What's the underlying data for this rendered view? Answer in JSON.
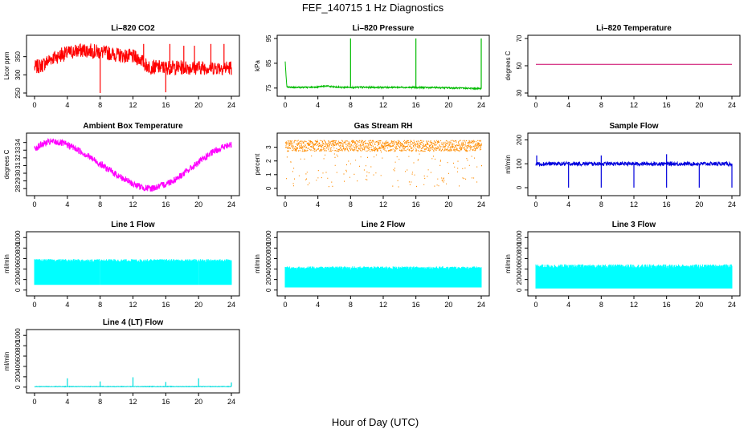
{
  "figure": {
    "title": "FEF_140715  1 Hz Diagnostics",
    "xlabel": "Hour of Day (UTC)"
  },
  "chart_data": [
    {
      "type": "line",
      "title": "Li–820 CO2",
      "ylabel": "Licor ppm",
      "xlim": [
        0,
        24
      ],
      "ylim": [
        250,
        400
      ],
      "xticks": [
        0,
        4,
        8,
        12,
        16,
        20,
        24
      ],
      "yticks": [
        250,
        300,
        350
      ],
      "color": "#ff0000",
      "series": [
        {
          "x": [
            0,
            1,
            2,
            3,
            4,
            5,
            6,
            7,
            8,
            9,
            10,
            11,
            12,
            13,
            13.5,
            14,
            16,
            18,
            20,
            22,
            24
          ],
          "y": [
            320,
            327,
            345,
            352,
            360,
            365,
            368,
            366,
            362,
            360,
            355,
            352,
            350,
            342,
            328,
            322,
            320,
            320,
            320,
            320,
            320
          ]
        }
      ],
      "band": 20,
      "spikes": [
        {
          "x": 2.1,
          "y": 345
        },
        {
          "x": 3.3,
          "y": 375
        },
        {
          "x": 8.0,
          "y": 250
        },
        {
          "x": 13.3,
          "y": 385
        },
        {
          "x": 16.0,
          "y": 252
        },
        {
          "x": 16.5,
          "y": 385
        },
        {
          "x": 18.2,
          "y": 380
        },
        {
          "x": 19.5,
          "y": 380
        },
        {
          "x": 21.5,
          "y": 385
        },
        {
          "x": 23.1,
          "y": 385
        },
        {
          "x": 24.0,
          "y": 300
        }
      ]
    },
    {
      "type": "line",
      "title": "Li–820 Pressure",
      "ylabel": "kPa",
      "xlim": [
        0,
        24
      ],
      "ylim": [
        73,
        95
      ],
      "xticks": [
        0,
        4,
        8,
        12,
        16,
        20,
        24
      ],
      "yticks": [
        75,
        85,
        95
      ],
      "color": "#00bb00",
      "series": [
        {
          "x": [
            0,
            0.1,
            0.2,
            1,
            3,
            4.5,
            5,
            5.5,
            6.5,
            10,
            14,
            18,
            20,
            22,
            23.9
          ],
          "y": [
            86,
            80,
            75.3,
            75.3,
            75.3,
            75.6,
            75.9,
            75.6,
            75.3,
            75.3,
            75.3,
            75.2,
            75.1,
            74.9,
            74.8
          ]
        }
      ],
      "band": 0.3,
      "spikes": [
        {
          "x": 8.0,
          "y": 95
        },
        {
          "x": 16.0,
          "y": 95
        },
        {
          "x": 24.0,
          "y": 95
        }
      ]
    },
    {
      "type": "line",
      "title": "Li–820 Temperature",
      "ylabel": "degrees C",
      "xlim": [
        0,
        24
      ],
      "ylim": [
        30,
        70
      ],
      "xticks": [
        0,
        4,
        8,
        12,
        16,
        20,
        24
      ],
      "yticks": [
        30,
        50,
        70
      ],
      "color": "#cc0066",
      "series": [
        {
          "x": [
            0,
            24
          ],
          "y": [
            51,
            51
          ]
        }
      ],
      "band": 0,
      "spikes": []
    },
    {
      "type": "line",
      "title": "Ambient Box Temperature",
      "ylabel": "degrees C",
      "xlim": [
        0,
        24
      ],
      "ylim": [
        27.5,
        34.8
      ],
      "xticks": [
        0,
        4,
        8,
        12,
        16,
        20,
        24
      ],
      "yticks": [
        28,
        29,
        30,
        31,
        32,
        33,
        34
      ],
      "color": "#ff00ff",
      "series": [
        {
          "x": [
            0,
            1,
            2,
            3,
            4,
            5,
            6,
            7,
            8,
            9,
            10,
            11,
            12,
            13,
            14,
            15,
            16,
            17,
            18,
            19,
            20,
            21,
            22,
            23,
            24
          ],
          "y": [
            33.2,
            33.8,
            34.1,
            34.0,
            33.7,
            33.2,
            32.6,
            31.9,
            31.2,
            30.5,
            29.8,
            29.2,
            28.6,
            28.2,
            28.0,
            28.2,
            28.6,
            29.1,
            29.8,
            30.6,
            31.4,
            32.2,
            32.9,
            33.4,
            33.7
          ]
        }
      ],
      "band": 0.45,
      "spikes": []
    },
    {
      "type": "line",
      "title": "Gas Stream RH",
      "ylabel": "percent",
      "xlim": [
        0,
        24
      ],
      "ylim": [
        -0.3,
        3.8
      ],
      "xticks": [
        0,
        4,
        8,
        12,
        16,
        20,
        24
      ],
      "yticks": [
        0,
        1,
        2,
        3
      ],
      "color": "#ff8c00",
      "points": true,
      "series": [
        {
          "x": [
            0,
            24
          ],
          "y": [
            3.5,
            3.5
          ]
        }
      ],
      "band": 0.4,
      "spikes": []
    },
    {
      "type": "line",
      "title": "Sample Flow",
      "ylabel": "ml/min",
      "xlim": [
        0,
        24
      ],
      "ylim": [
        -20,
        215
      ],
      "xticks": [
        0,
        4,
        8,
        12,
        16,
        20,
        24
      ],
      "yticks": [
        0,
        100,
        200
      ],
      "color": "#0000dd",
      "series": [
        {
          "x": [
            0,
            24
          ],
          "y": [
            100,
            100
          ]
        }
      ],
      "band": 8,
      "spikes": [
        {
          "x": 0.1,
          "y": 135
        },
        {
          "x": 4.0,
          "y": 0
        },
        {
          "x": 8.0,
          "y": 0
        },
        {
          "x": 8.0,
          "y": 135
        },
        {
          "x": 12.0,
          "y": 0
        },
        {
          "x": 16.0,
          "y": 0
        },
        {
          "x": 16.0,
          "y": 140
        },
        {
          "x": 20.0,
          "y": 0
        },
        {
          "x": 24.0,
          "y": 0
        }
      ]
    },
    {
      "type": "area",
      "title": "Line 1 Flow",
      "ylabel": "ml/min",
      "xlim": [
        0,
        24
      ],
      "ylim": [
        -50,
        1050
      ],
      "xticks": [
        0,
        4,
        8,
        12,
        16,
        20,
        24
      ],
      "yticks": [
        0,
        200,
        400,
        600,
        800,
        1000
      ],
      "color": "#00ffff",
      "low": 100,
      "series": [
        {
          "x": [
            0,
            24
          ],
          "y": [
            560,
            560
          ]
        }
      ],
      "band": 30,
      "gaps": [
        4,
        8,
        12,
        16,
        20
      ]
    },
    {
      "type": "area",
      "title": "Line 2 Flow",
      "ylabel": "ml/min",
      "xlim": [
        0,
        24
      ],
      "ylim": [
        -50,
        1050
      ],
      "xticks": [
        0,
        4,
        8,
        12,
        16,
        20,
        24
      ],
      "yticks": [
        0,
        200,
        400,
        600,
        800,
        1000
      ],
      "color": "#00ffff",
      "low": 50,
      "series": [
        {
          "x": [
            0,
            24
          ],
          "y": [
            420,
            420
          ]
        }
      ],
      "band": 30,
      "gaps": [
        4,
        8,
        12,
        16,
        20
      ]
    },
    {
      "type": "area",
      "title": "Line 3 Flow",
      "ylabel": "ml/min",
      "xlim": [
        0,
        24
      ],
      "ylim": [
        -50,
        1050
      ],
      "xticks": [
        0,
        4,
        8,
        12,
        16,
        20,
        24
      ],
      "yticks": [
        0,
        200,
        400,
        600,
        800,
        1000
      ],
      "color": "#00ffff",
      "low": 30,
      "series": [
        {
          "x": [
            0,
            24
          ],
          "y": [
            450,
            450
          ]
        }
      ],
      "band": 40,
      "gaps": [
        4,
        8,
        12,
        16,
        20
      ]
    },
    {
      "type": "line",
      "title": "Line 4 (LT) Flow",
      "ylabel": "ml/min",
      "xlim": [
        0,
        24
      ],
      "ylim": [
        -50,
        1050
      ],
      "xticks": [
        0,
        4,
        8,
        12,
        16,
        20,
        24
      ],
      "yticks": [
        0,
        200,
        400,
        600,
        800,
        1000
      ],
      "color": "#00dddd",
      "series": [
        {
          "x": [
            0,
            24
          ],
          "y": [
            10,
            10
          ]
        }
      ],
      "band": 5,
      "spikes": [
        {
          "x": 4.0,
          "y": 170
        },
        {
          "x": 8.0,
          "y": 110
        },
        {
          "x": 12.0,
          "y": 190
        },
        {
          "x": 16.0,
          "y": 100
        },
        {
          "x": 20.0,
          "y": 170
        },
        {
          "x": 24.0,
          "y": 90
        }
      ]
    }
  ]
}
